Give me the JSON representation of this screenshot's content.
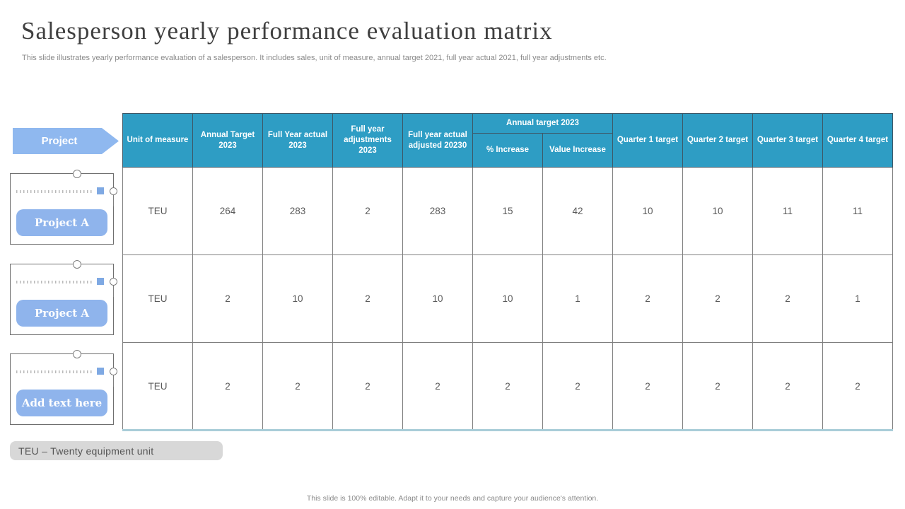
{
  "slide": {
    "title": "Salesperson yearly performance evaluation matrix",
    "subtitle": "This slide illustrates yearly performance evaluation of a salesperson. It includes sales, unit of measure, annual target 2021, full year actual 2021, full year adjustments etc.",
    "footer": "This slide is 100% editable.  Adapt it to your needs and capture your audience's attention."
  },
  "left_panel": {
    "header_label": "Project",
    "items": [
      {
        "label": "Project A"
      },
      {
        "label": "Project A"
      },
      {
        "label": "Add text here"
      }
    ],
    "note": "TEU – Twenty  equipment unit"
  },
  "table": {
    "headers": {
      "unit_of_measure": "Unit of measure",
      "annual_target_2023": "Annual Target 2023",
      "full_year_actual_2023": "Full Year actual 2023",
      "full_year_adjustments_2023": "Full year adjustments 2023",
      "full_year_actual_adjusted_20230": "Full year actual adjusted 20230",
      "annual_target_2023_group": "Annual target 2023",
      "pct_increase": "% Increase",
      "value_increase": "Value Increase",
      "quarter_1_target": "Quarter 1 target",
      "quarter_2_target": "Quarter 2 target",
      "quarter_3_target": "Quarter 3 target",
      "quarter_4_target": "Quarter 4 target"
    },
    "rows": [
      [
        "TEU",
        "264",
        "283",
        "2",
        "283",
        "15",
        "42",
        "10",
        "10",
        "11",
        "11"
      ],
      [
        "TEU",
        "2",
        "10",
        "2",
        "10",
        "10",
        "1",
        "2",
        "2",
        "2",
        "1"
      ],
      [
        "TEU",
        "2",
        "2",
        "2",
        "2",
        "2",
        "2",
        "2",
        "2",
        "2",
        "2"
      ]
    ]
  },
  "colors": {
    "header_teal": "#2E9DC4",
    "accent_blue": "#8FB4EC",
    "table_bottom_teal": "#A9CDD8"
  }
}
